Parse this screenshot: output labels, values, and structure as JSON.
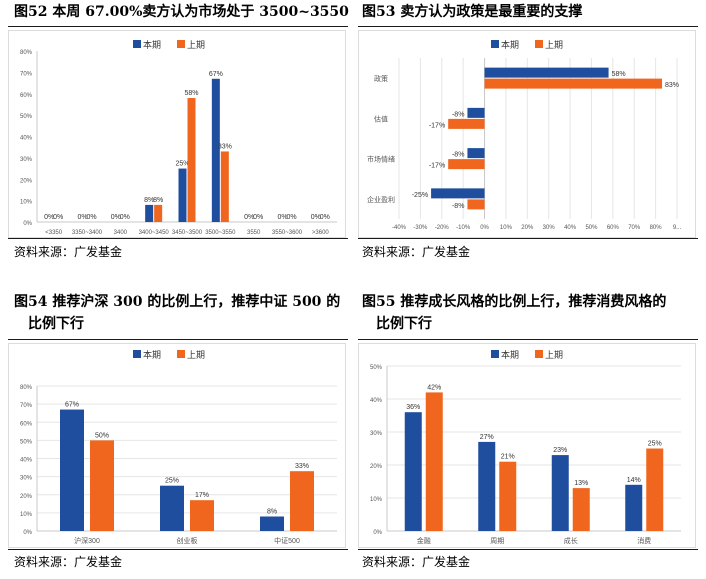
{
  "colors": {
    "current": "#1f4e9e",
    "previous": "#f0661e",
    "axis": "#c8c8c8",
    "grid": "#e6e6e6",
    "text": "#555555"
  },
  "titles": {
    "fig52": "图52 本周 67.00%卖方认为市场处于 3500~3550",
    "fig53": "图53 卖方认为政策是最重要的支撑",
    "fig54_line1": "图54 推荐沪深 300 的比例上行，推荐中证 500 的",
    "fig54_line2": "比例下行",
    "fig55_line1": "图55 推荐成长风格的比例上行，推荐消费风格的",
    "fig55_line2": "比例下行"
  },
  "sources": {
    "s1": "资料来源：广发基金",
    "s2": "资料来源：广发基金",
    "s3": "资料来源：广发基金",
    "s4": "资料来源：广发基金"
  },
  "chart_data": [
    {
      "type": "bar",
      "legend": [
        "本期",
        "上期"
      ],
      "legend_position": "top-center",
      "categories": [
        "<3350",
        "3350~3400",
        "3400",
        "3400~3450",
        "3450~3500",
        "3500~3550",
        "3550",
        "3550~3600",
        ">3600"
      ],
      "series": [
        {
          "name": "本期",
          "values": [
            0,
            0,
            0,
            8,
            25,
            67,
            0,
            0,
            0
          ]
        },
        {
          "name": "上期",
          "values": [
            0,
            0,
            0,
            8,
            58,
            33,
            0,
            0,
            0
          ]
        }
      ],
      "ylim": [
        0,
        80
      ],
      "yticks": [
        "0%",
        "10%",
        "20%",
        "30%",
        "40%",
        "50%",
        "60%",
        "70%",
        "80%"
      ],
      "grid": false
    },
    {
      "type": "bar",
      "orientation": "horizontal",
      "legend": [
        "本期",
        "上期"
      ],
      "legend_position": "top-center",
      "categories": [
        "政策",
        "估值",
        "市场情绪",
        "企业盈利"
      ],
      "series": [
        {
          "name": "本期",
          "values": [
            58,
            -8,
            -8,
            -25
          ]
        },
        {
          "name": "上期",
          "values": [
            83,
            -17,
            -17,
            -8
          ]
        }
      ],
      "xlim": [
        -40,
        90
      ],
      "xticks": [
        "-40%",
        "-30%",
        "-20%",
        "-10%",
        "0%",
        "10%",
        "20%",
        "30%",
        "40%",
        "50%",
        "60%",
        "70%",
        "80%",
        "9..."
      ],
      "grid": true
    },
    {
      "type": "bar",
      "legend": [
        "本期",
        "上期"
      ],
      "legend_position": "top-center",
      "categories": [
        "沪深300",
        "创业板",
        "中证500"
      ],
      "series": [
        {
          "name": "本期",
          "values": [
            67,
            25,
            8
          ]
        },
        {
          "name": "上期",
          "values": [
            50,
            17,
            33
          ]
        }
      ],
      "ylim": [
        0,
        80
      ],
      "yticks": [
        "0%",
        "10%",
        "20%",
        "30%",
        "40%",
        "50%",
        "60%",
        "70%",
        "80%"
      ],
      "grid": true
    },
    {
      "type": "bar",
      "legend": [
        "本期",
        "上期"
      ],
      "legend_position": "top-center",
      "categories": [
        "金融",
        "周期",
        "成长",
        "消费"
      ],
      "series": [
        {
          "name": "本期",
          "values": [
            36,
            27,
            23,
            14
          ]
        },
        {
          "name": "上期",
          "values": [
            42,
            21,
            13,
            25
          ]
        }
      ],
      "ylim": [
        0,
        50
      ],
      "yticks": [
        "0%",
        "10%",
        "20%",
        "30%",
        "40%",
        "50%"
      ],
      "grid": true
    }
  ]
}
